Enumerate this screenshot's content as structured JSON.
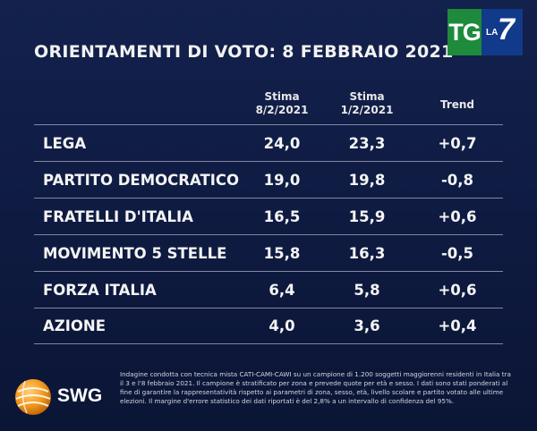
{
  "title": "ORIENTAMENTI DI VOTO: 8 FEBBRAIO 2021",
  "logo": {
    "tg": "TG",
    "la": "LA",
    "seven": "7"
  },
  "columns": {
    "stima_a_line1": "Stima",
    "stima_a_line2": "8/2/2021",
    "stima_b_line1": "Stima",
    "stima_b_line2": "1/2/2021",
    "trend": "Trend"
  },
  "rows": [
    {
      "party": "LEGA",
      "a": "24,0",
      "b": "23,3",
      "trend": "+0,7"
    },
    {
      "party": "PARTITO DEMOCRATICO",
      "a": "19,0",
      "b": "19,8",
      "trend": "-0,8"
    },
    {
      "party": "FRATELLI D'ITALIA",
      "a": "16,5",
      "b": "15,9",
      "trend": "+0,6"
    },
    {
      "party": "MOVIMENTO 5 STELLE",
      "a": "15,8",
      "b": "16,3",
      "trend": "-0,5"
    },
    {
      "party": "FORZA ITALIA",
      "a": "6,4",
      "b": "5,8",
      "trend": "+0,6"
    },
    {
      "party": "AZIONE",
      "a": "4,0",
      "b": "3,6",
      "trend": "+0,4"
    }
  ],
  "footer": {
    "brand": "SWG",
    "note": "Indagine condotta con tecnica mista CATI-CAMI-CAWI su un campione di 1.200 soggetti maggiorenni residenti in Italia tra il 3 e l'8 febbraio 2021. Il campione è stratificato per zona e prevede quote per età e sesso. I dati sono stati ponderati al fine di garantire la rappresentatività rispetto ai parametri di zona, sesso, età, livello scolare e partito votato alle ultime elezioni. Il margine d'errore statistico dei dati riportati è del 2,8% a un intervallo di confidenza del 95%."
  },
  "colors": {
    "background": "#13214d",
    "tg_green": "#1e8a3c",
    "la7_blue": "#123a8a",
    "swg_orange": "#f39a1e"
  }
}
